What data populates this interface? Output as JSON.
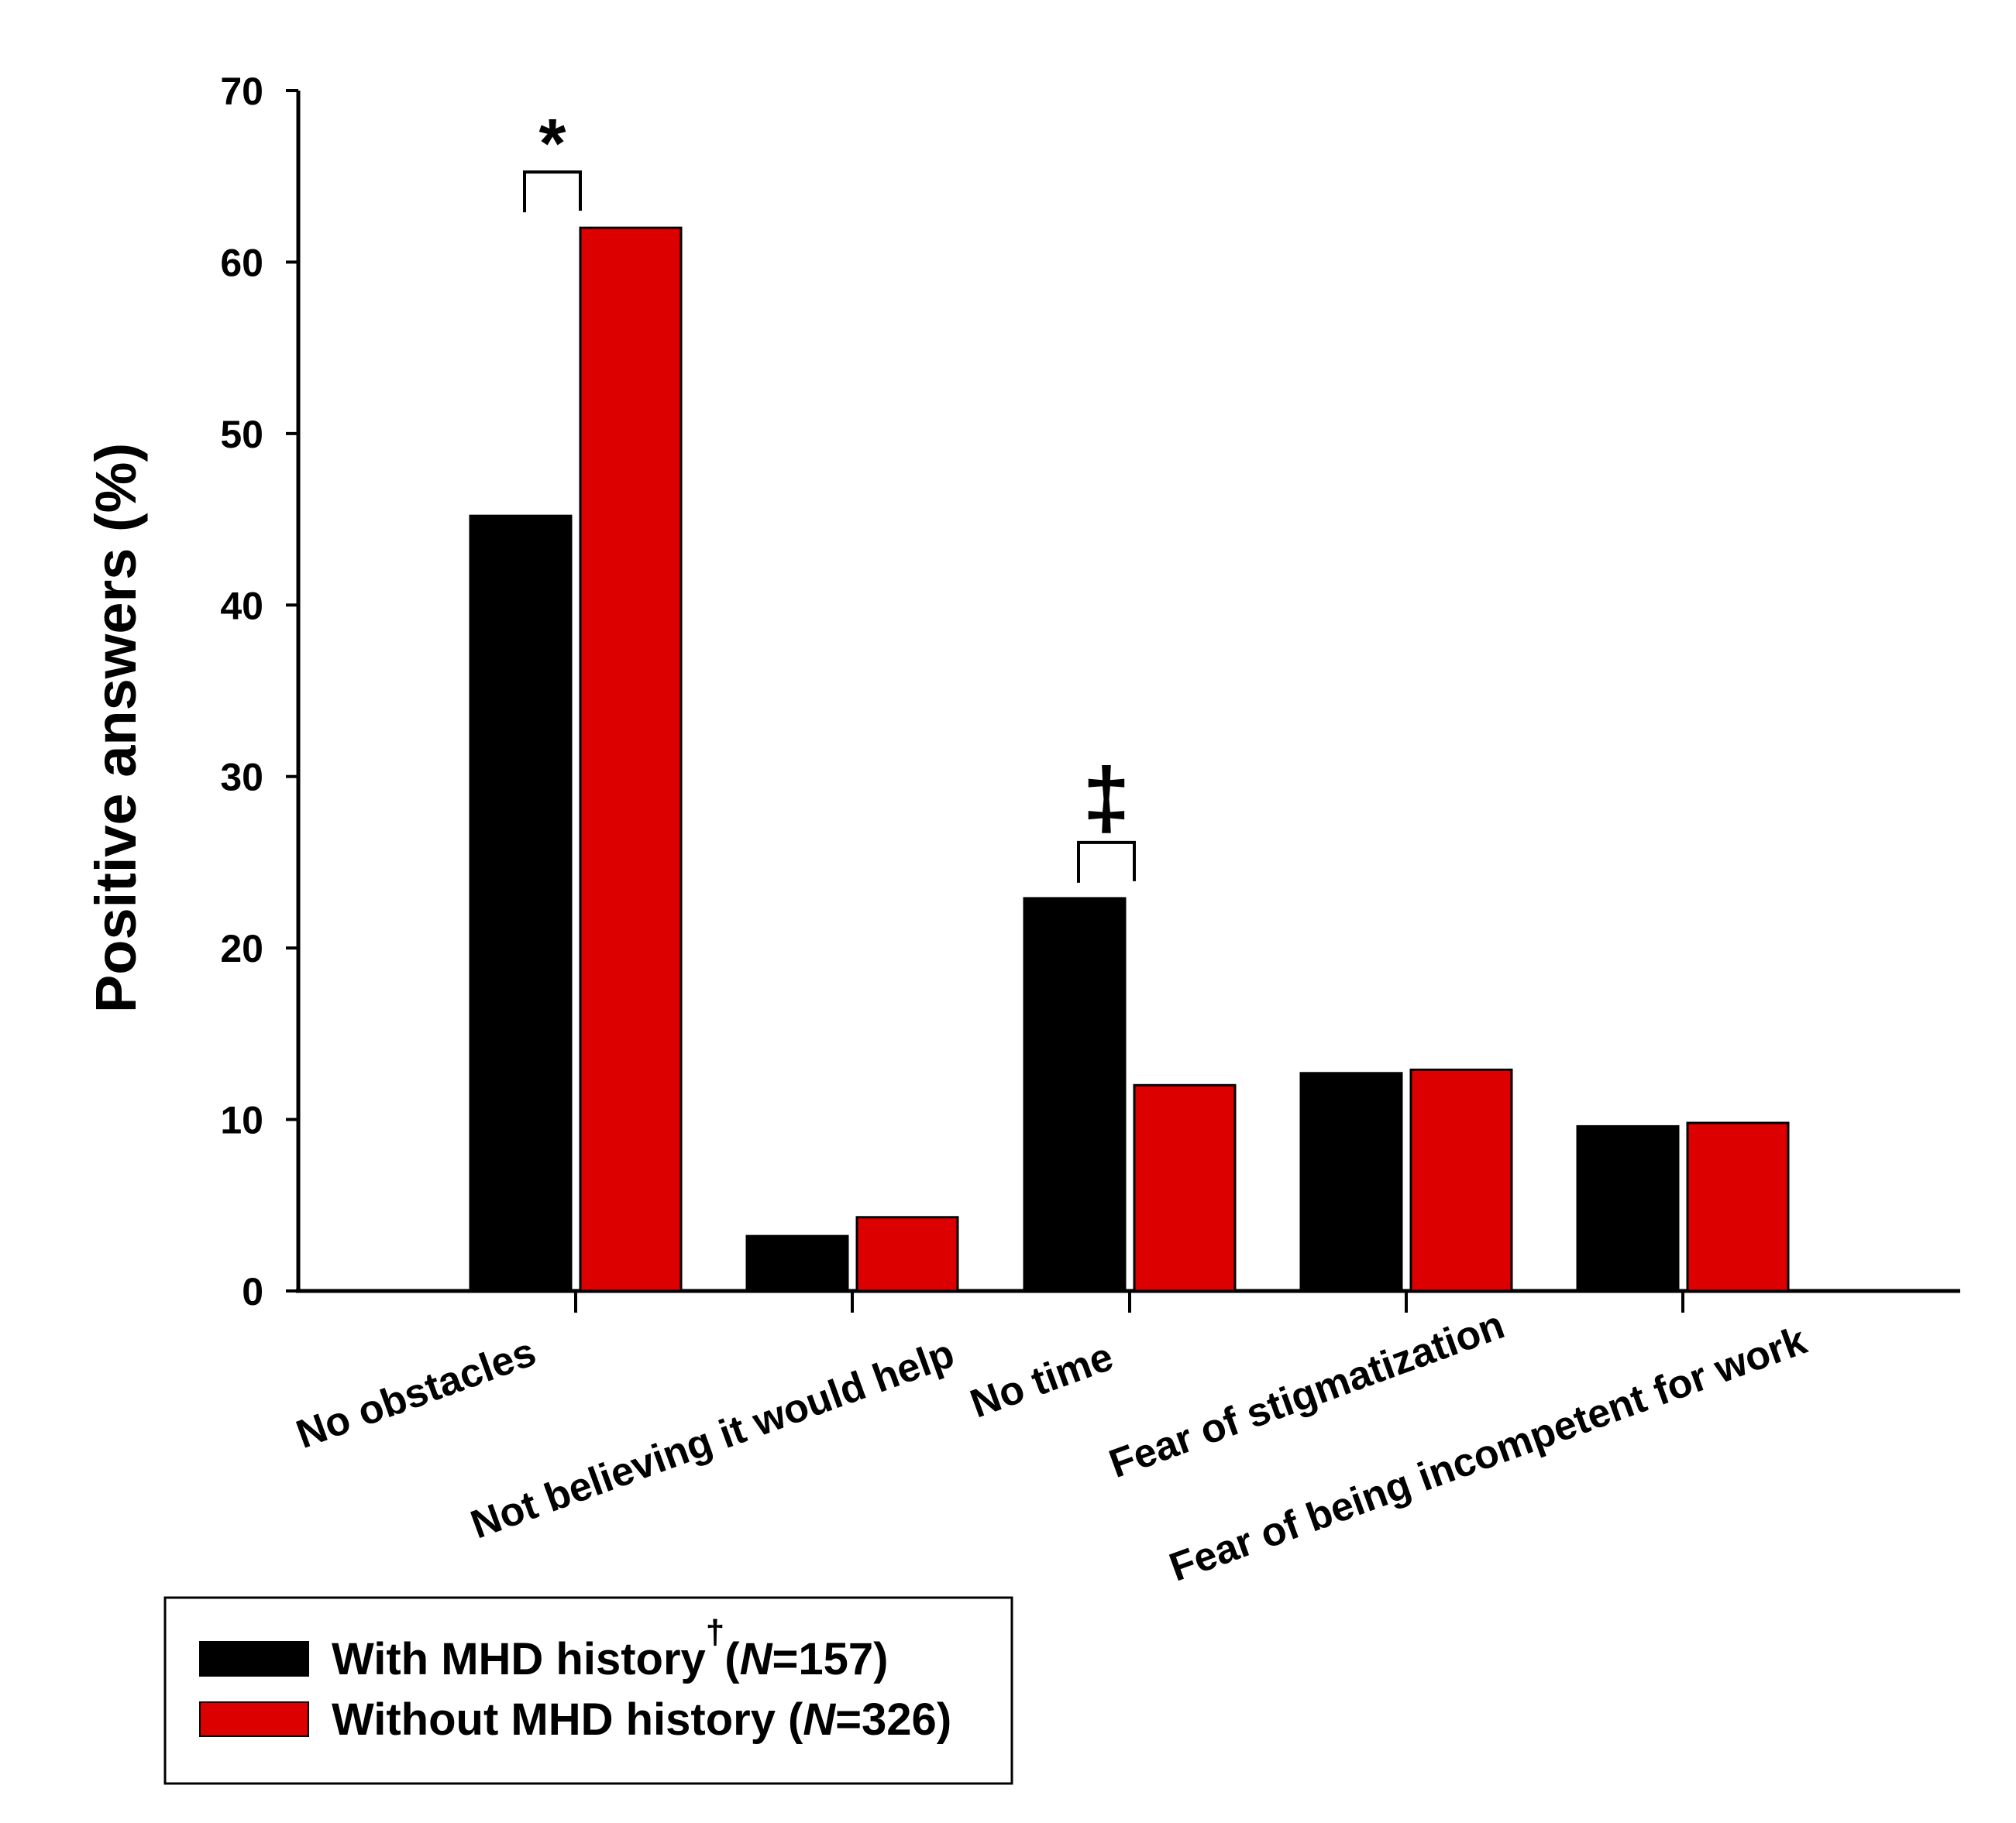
{
  "chart_data": {
    "type": "bar",
    "ylabel": "Positive answers (%)",
    "ylim": [
      0,
      70
    ],
    "yticks": [
      "0",
      "10",
      "20",
      "30",
      "40",
      "50",
      "60",
      "70"
    ],
    "categories": [
      "No obstacles",
      "Not believing it would help",
      "No time",
      "Fear of stigmatization",
      "Fear of being incompetent for work"
    ],
    "series": [
      {
        "name": "With MHD history",
        "name_suffix": "(N=157)",
        "color": "#000000",
        "values": [
          45.2,
          3.2,
          22.9,
          12.7,
          9.6
        ]
      },
      {
        "name": "Without MHD history",
        "name_suffix": "(N=326)",
        "color": "#dd0000",
        "values": [
          62.0,
          4.3,
          12.0,
          12.9,
          9.8
        ]
      }
    ],
    "annotations": [
      {
        "category": "No obstacles",
        "symbol": "*"
      },
      {
        "category": "No time",
        "symbol": "‡"
      }
    ],
    "legend": {
      "placement": "bottom-left",
      "items": [
        {
          "name": "With MHD history",
          "footnote_mark": "†",
          "n_italic": "N",
          "n_rest": "=157)",
          "n_open": "("
        },
        {
          "name": "Without MHD history",
          "footnote_mark": "",
          "n_italic": "N",
          "n_rest": "=326)",
          "n_open": "("
        }
      ]
    }
  }
}
